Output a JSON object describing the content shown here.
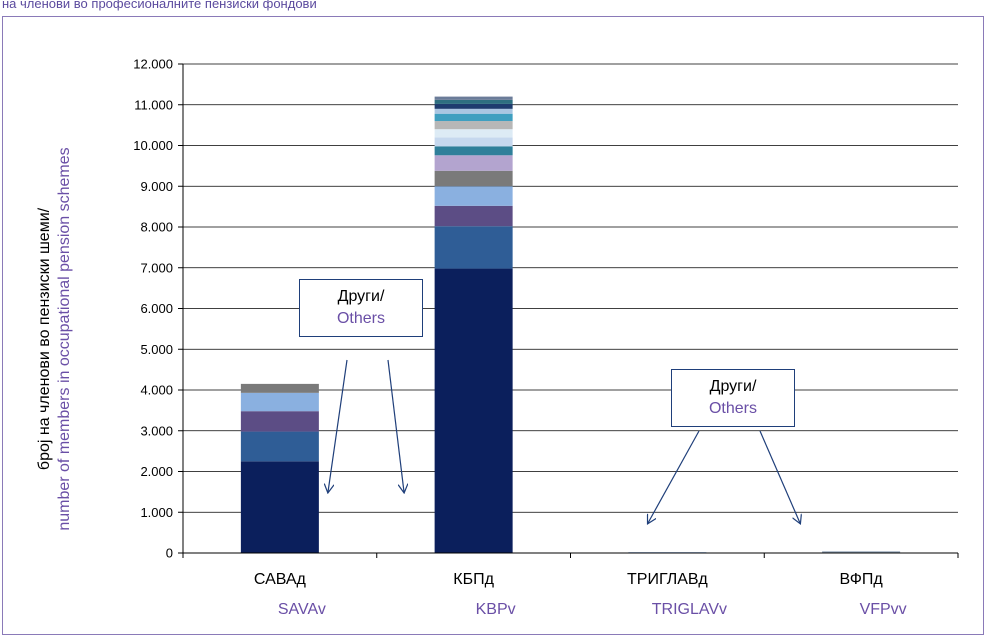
{
  "caption": "на членови во професионалните пензиски фондови",
  "chart_data": {
    "type": "bar",
    "stacked": true,
    "ylabel_mk": "број на членови во пензиски шеми/",
    "ylabel_en": "number of members in occupational pension schemes",
    "ylim": [
      0,
      12000
    ],
    "yticks": [
      "0",
      "1.000",
      "2.000",
      "3.000",
      "4.000",
      "5.000",
      "6.000",
      "7.000",
      "8.000",
      "9.000",
      "10.000",
      "11.000",
      "12.000"
    ],
    "categories_mk": [
      "САВАд",
      "КБПд",
      "ТРИГЛАВд",
      "ВФПд"
    ],
    "categories_en": [
      "SAVAv",
      "KBPv",
      "TRIGLAVv",
      "VFPvv"
    ],
    "grid": true,
    "legend": "none",
    "stacks": [
      {
        "segments": [
          {
            "value": 2250,
            "color": "#0b1f5c"
          },
          {
            "value": 730,
            "color": "#2f5d96"
          },
          {
            "value": 500,
            "color": "#5c4d85"
          },
          {
            "value": 450,
            "color": "#8ab0e0"
          },
          {
            "value": 220,
            "color": "#7a7a7a"
          }
        ]
      },
      {
        "segments": [
          {
            "value": 6980,
            "color": "#0b1f5c"
          },
          {
            "value": 1040,
            "color": "#2f5d96"
          },
          {
            "value": 500,
            "color": "#5c4d85"
          },
          {
            "value": 480,
            "color": "#8ab0e0"
          },
          {
            "value": 380,
            "color": "#7a7a7a"
          },
          {
            "value": 380,
            "color": "#b3a4cf"
          },
          {
            "value": 220,
            "color": "#2f7f9a"
          },
          {
            "value": 220,
            "color": "#c6d8ee"
          },
          {
            "value": 200,
            "color": "#ddebf5"
          },
          {
            "value": 200,
            "color": "#b7b7b7"
          },
          {
            "value": 180,
            "color": "#3f9fc0"
          },
          {
            "value": 120,
            "color": "#a9c6e2"
          },
          {
            "value": 120,
            "color": "#1e3c6e"
          },
          {
            "value": 100,
            "color": "#2e6f80"
          },
          {
            "value": 80,
            "color": "#6b7c99"
          }
        ]
      },
      {
        "segments": [
          {
            "value": 20,
            "color": "#8ab0e0"
          }
        ]
      },
      {
        "segments": [
          {
            "value": 40,
            "color": "#8a9bb0"
          }
        ]
      }
    ],
    "annotations": [
      {
        "line1": "Други/",
        "line2": "Others"
      },
      {
        "line1": "Други/",
        "line2": "Others"
      }
    ]
  }
}
